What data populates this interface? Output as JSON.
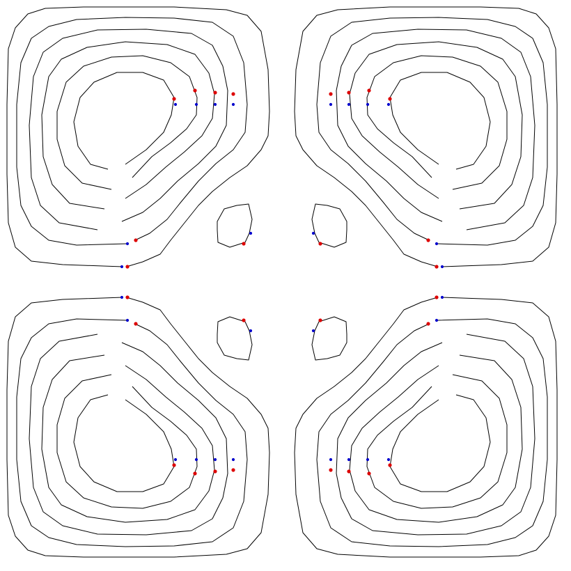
{
  "figure": {
    "line_color": "#000000",
    "marker_colors": {
      "red": "#dd0000",
      "blue": "#0000cc"
    }
  },
  "quadrants": [
    {
      "id": "top-left",
      "cell": [
        0,
        0
      ],
      "flip_x": false,
      "flip_y": false,
      "contours": 6,
      "small_loop": true
    },
    {
      "id": "top-right",
      "cell": [
        1,
        0
      ],
      "flip_x": true,
      "flip_y": false,
      "contours": 6,
      "small_loop": true
    },
    {
      "id": "bottom-left",
      "cell": [
        0,
        1
      ],
      "flip_x": false,
      "flip_y": true,
      "contours": 6,
      "small_loop": true
    },
    {
      "id": "bottom-right",
      "cell": [
        1,
        1
      ],
      "flip_x": true,
      "flip_y": true,
      "contours": 6,
      "small_loop": true
    }
  ]
}
